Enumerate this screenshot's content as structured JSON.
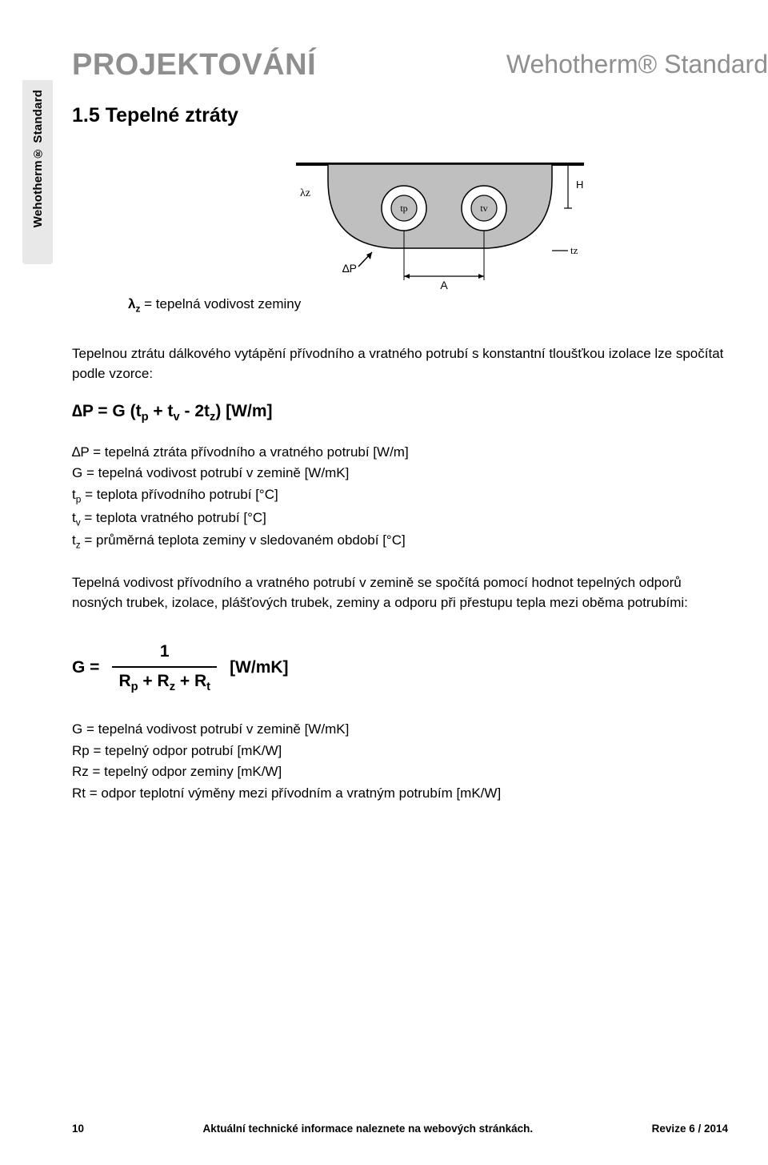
{
  "brand": "Wehotherm® Standard",
  "page_title": "PROJEKTOVÁNÍ",
  "section_heading": "1.5 Tepelné ztráty",
  "side_tab": "Wehotherm® Standard",
  "diagram": {
    "labels": {
      "lambda_z": "λz",
      "delta_P": "∆P",
      "tp": "tp",
      "tv": "tv",
      "tz": "tz",
      "A": "A",
      "H": "H"
    },
    "colors": {
      "soil_fill": "#bfbfbf",
      "pipe_ring": "#ffffff",
      "pipe_core": "#bfbfbf",
      "stroke": "#000000",
      "background": "#ffffff"
    },
    "stroke_width": 2
  },
  "lambda_def": {
    "symbol_html": "λ<sub>z</sub>",
    "eq": " = tepelná vodivost zeminy"
  },
  "paragraph1": "Tepelnou ztrátu dálkového vytápění přívodního a vratného potrubí s konstantní tloušťkou izolace lze spočítat podle vzorce:",
  "formula1_html": "∆P = G (t<sub>p</sub> + t<sub>v</sub> - 2t<sub>z</sub>) [W/m]",
  "defs1": [
    "∆P = tepelná ztráta přívodního a vratného potrubí [W/m]",
    "G   = tepelná vodivost potrubí v zemině [W/mK]",
    "t<sub>p</sub>   = teplota přívodního potrubí [°C]",
    "t<sub>v</sub>   = teplota vratného potrubí [°C]",
    "t<sub>z</sub>   = průměrná teplota zeminy v sledovaném období [°C]"
  ],
  "paragraph2": "Tepelná vodivost přívodního a vratného potrubí v zemině se spočítá pomocí hodnot tepelných odporů nosných trubek, izolace, plášťových trubek, zeminy a odporu při přestupu tepla mezi oběma potrubími:",
  "formula2": {
    "lhs": "G =",
    "numerator": "1",
    "denominator_html": "R<sub>p</sub> + R<sub>z</sub> + R<sub>t</sub>",
    "unit": "[W/mK]"
  },
  "defs2": [
    "G   = tepelná vodivost potrubí v zemině [W/mK]",
    "Rp = tepelný odpor potrubí [mK/W]",
    "Rz = tepelný odpor zeminy [mK/W]",
    "Rt  = odpor teplotní výměny mezi přívodním a vratným potrubím [mK/W]"
  ],
  "footer": {
    "page_number": "10",
    "center": "Aktuální technické informace naleznete na webových stránkách.",
    "revision": "Revize 6 / 2014"
  }
}
